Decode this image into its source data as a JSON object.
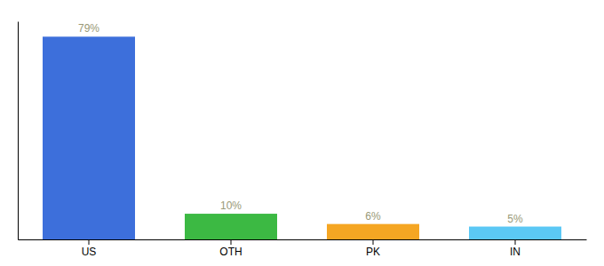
{
  "chart_data": {
    "type": "bar",
    "categories": [
      "US",
      "OTH",
      "PK",
      "IN"
    ],
    "values": [
      79,
      10,
      6,
      5
    ],
    "value_labels": [
      "79%",
      "10%",
      "6%",
      "5%"
    ],
    "data_labels": true,
    "colors": [
      "#3d6fdb",
      "#3cb943",
      "#f5a623",
      "#5bc8f5"
    ],
    "ylim": [
      0,
      85
    ],
    "tick_labels": "x"
  }
}
